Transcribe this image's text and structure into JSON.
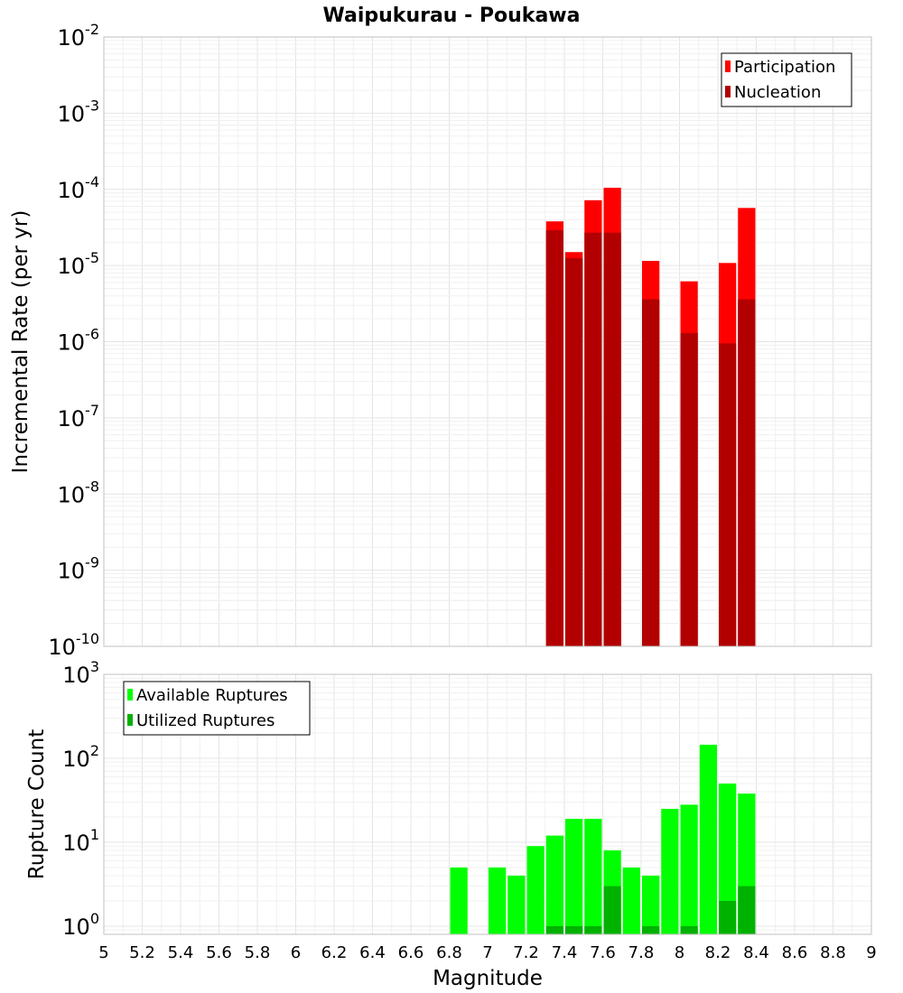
{
  "chart_data": {
    "title": "Waipukurau - Poukawa",
    "xlabel": "Magnitude",
    "xlim": [
      5,
      9
    ],
    "x_ticks": [
      "5",
      "5.2",
      "5.4",
      "5.6",
      "5.8",
      "6",
      "6.2",
      "6.4",
      "6.6",
      "6.8",
      "7",
      "7.2",
      "7.4",
      "7.6",
      "7.8",
      "8",
      "8.2",
      "8.4",
      "8.6",
      "8.8",
      "9"
    ],
    "bin_width": 0.1,
    "grid": true,
    "panels": [
      {
        "type": "bar",
        "scale": "log",
        "ylabel": "Incremental Rate (per yr)",
        "ylim": [
          1e-10,
          0.01
        ],
        "y_ticks": [
          {
            "base": "10",
            "exp": "-10",
            "value": 1e-10
          },
          {
            "base": "10",
            "exp": "-9",
            "value": 1e-09
          },
          {
            "base": "10",
            "exp": "-8",
            "value": 1e-08
          },
          {
            "base": "10",
            "exp": "-7",
            "value": 1e-07
          },
          {
            "base": "10",
            "exp": "-6",
            "value": 1e-06
          },
          {
            "base": "10",
            "exp": "-5",
            "value": 1e-05
          },
          {
            "base": "10",
            "exp": "-4",
            "value": 0.0001
          },
          {
            "base": "10",
            "exp": "-3",
            "value": 0.001
          },
          {
            "base": "10",
            "exp": "-2",
            "value": 0.01
          }
        ],
        "legend_position": "top-right",
        "series": [
          {
            "name": "Participation",
            "color": "#ff0000",
            "x": [
              7.35,
              7.45,
              7.55,
              7.65,
              7.85,
              8.05,
              8.25,
              8.35
            ],
            "values": [
              3.8e-05,
              1.5e-05,
              7.2e-05,
              0.000105,
              1.15e-05,
              6.2e-06,
              1.08e-05,
              5.7e-05
            ]
          },
          {
            "name": "Nucleation",
            "color": "#b20000",
            "x": [
              7.35,
              7.45,
              7.55,
              7.65,
              7.85,
              8.05,
              8.25,
              8.35
            ],
            "values": [
              2.9e-05,
              1.25e-05,
              2.7e-05,
              2.7e-05,
              3.6e-06,
              1.3e-06,
              9.5e-07,
              3.6e-06
            ]
          }
        ]
      },
      {
        "type": "bar",
        "scale": "log",
        "ylabel": "Rupture Count",
        "ylim": [
          0.8,
          1000
        ],
        "y_ticks": [
          {
            "base": "10",
            "exp": "0",
            "value": 1
          },
          {
            "base": "10",
            "exp": "1",
            "value": 10
          },
          {
            "base": "10",
            "exp": "2",
            "value": 100
          },
          {
            "base": "10",
            "exp": "3",
            "value": 1000
          }
        ],
        "legend_position": "top-left",
        "series": [
          {
            "name": "Available Ruptures",
            "color": "#00ff00",
            "x": [
              6.85,
              7.05,
              7.15,
              7.25,
              7.35,
              7.45,
              7.55,
              7.65,
              7.75,
              7.85,
              7.95,
              8.05,
              8.15,
              8.25,
              8.35
            ],
            "values": [
              5,
              5,
              4,
              9,
              12,
              19,
              19,
              8,
              5,
              4,
              25,
              28,
              145,
              50,
              38
            ]
          },
          {
            "name": "Utilized Ruptures",
            "color": "#00b200",
            "x": [
              7.35,
              7.45,
              7.55,
              7.65,
              7.85,
              8.05,
              8.25,
              8.35
            ],
            "values": [
              1,
              1,
              1,
              3,
              1,
              1,
              2,
              3
            ]
          }
        ]
      }
    ]
  }
}
